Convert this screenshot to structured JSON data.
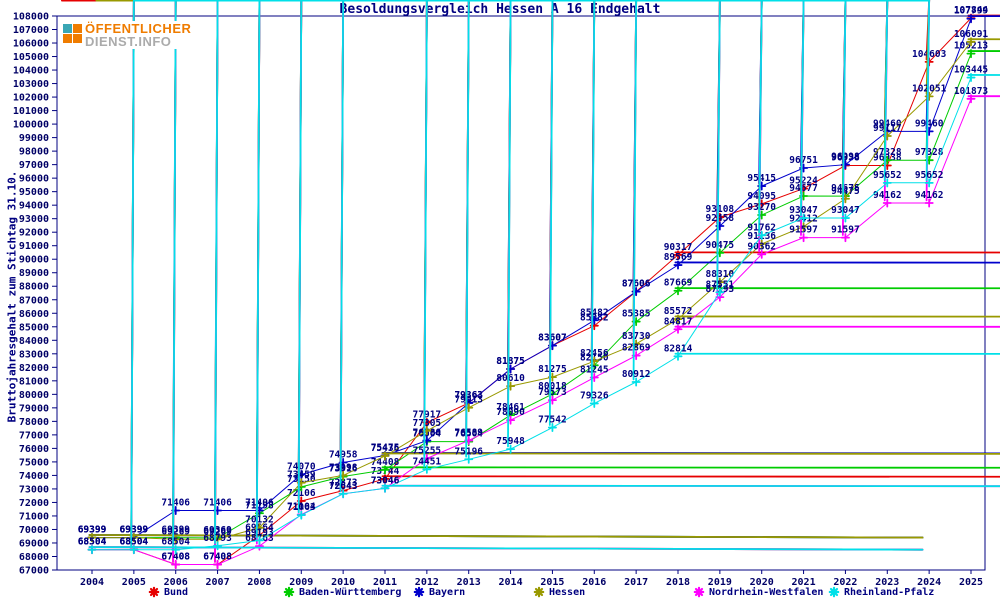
{
  "page": {
    "title": "Besoldungsvergleich Hessen A 16 Endgehalt",
    "y_axis_title": "Bruttojahresgehalt zum Stichtag 31.10."
  },
  "logo": {
    "line1": "ÖFFENTLICHER",
    "line2": "DIENST.INFO",
    "orange": "#ef7c00",
    "teal": "#3aa6b4",
    "gray": "#ababab"
  },
  "colors": {
    "axis_text": "#000066",
    "frame": "#000080",
    "label_text": "#000080"
  },
  "chart_data": {
    "type": "line",
    "title": "Besoldungsvergleich Hessen A 16 Endgehalt",
    "ylabel": "Bruttojahresgehalt zum Stichtag 31.10.",
    "ylim": [
      67000,
      108000
    ],
    "ytick_step": 1000,
    "grid": false,
    "legend_position": "bottom",
    "x": [
      2004,
      2005,
      2006,
      2007,
      2008,
      2009,
      2010,
      2011,
      2012,
      2013,
      2014,
      2015,
      2016,
      2017,
      2018,
      2019,
      2020,
      2021,
      2022,
      2023,
      2024,
      2025
    ],
    "series": [
      {
        "name": "Bund",
        "color": "#e60000",
        "values": [
          68504,
          68504,
          67408,
          67408,
          69564,
          72106,
          72873,
          73744,
          77917,
          79363,
          81875,
          83607,
          85082,
          87606,
          90317,
          93108,
          94095,
          95224,
          96938,
          96938,
          104603,
          107844
        ]
      },
      {
        "name": "Baden-Württemberg",
        "color": "#00cc00",
        "values": [
          69399,
          69399,
          69399,
          69369,
          71198,
          73150,
          73916,
          74408,
          76504,
          76504,
          78461,
          80018,
          82150,
          85385,
          87669,
          90475,
          93270,
          94677,
          94675,
          97328,
          97328,
          105213
        ]
      },
      {
        "name": "Bayern",
        "color": "#0000cc",
        "values": [
          69399,
          69399,
          71406,
          71406,
          71406,
          74070,
          74958,
          75475,
          76580,
          79363,
          81875,
          83607,
          85482,
          87606,
          89569,
          92458,
          95415,
          96751,
          96998,
          99460,
          99460,
          107799
        ]
      },
      {
        "name": "Hessen",
        "color": "#999900",
        "values": [
          69399,
          69399,
          69269,
          69269,
          70132,
          73459,
          73998,
          75436,
          77305,
          79013,
          80610,
          81275,
          82456,
          83730,
          85572,
          88310,
          91136,
          92412,
          94475,
          99117,
          102051,
          106091
        ]
      },
      {
        "name": "Nordrhein-Westfalen",
        "color": "#ff00ff",
        "values": [
          68504,
          68504,
          67408,
          67408,
          68763,
          71104,
          72643,
          73046,
          75255,
          76589,
          78090,
          79573,
          81245,
          82869,
          84817,
          87193,
          90362,
          91597,
          91597,
          94162,
          94162,
          101873
        ]
      },
      {
        "name": "Rheinland-Pfalz",
        "color": "#00e0e8",
        "values": [
          68504,
          68504,
          68504,
          68793,
          69193,
          71063,
          72643,
          73046,
          74451,
          75196,
          75948,
          77542,
          79326,
          80912,
          82814,
          87551,
          91762,
          93047,
          93047,
          95652,
          95652,
          103445
        ]
      }
    ]
  }
}
